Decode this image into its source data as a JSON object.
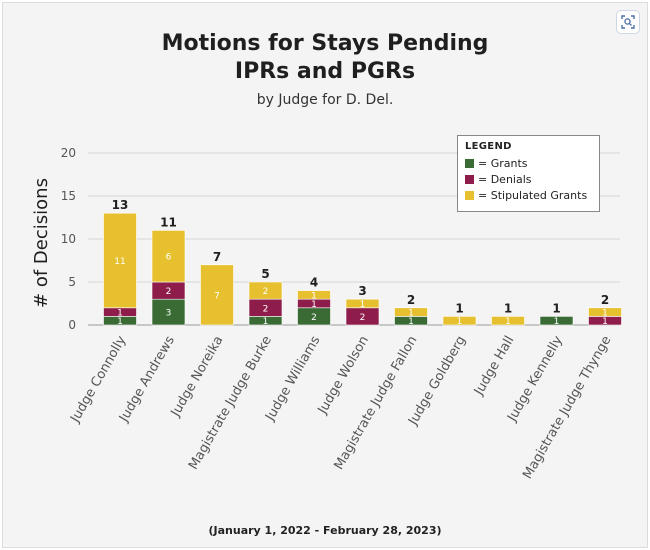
{
  "page": {
    "title_line1": "Motions for Stays Pending",
    "title_line2": "IPRs and PGRs",
    "subtitle": "by Judge for D. Del.",
    "footnote": "(January 1, 2022 - February 28, 2023)"
  },
  "legend": {
    "title": "LEGEND",
    "items": [
      "= Grants",
      "= Denials",
      "= Stipulated Grants"
    ]
  },
  "colors": {
    "grants": "#3a6b35",
    "denials": "#8e1d4b",
    "stipulated": "#e6c02f"
  },
  "chart_data": {
    "type": "bar",
    "stacked": true,
    "title": "Motions for Stays Pending IPRs and PGRs",
    "subtitle": "by Judge for D. Del.",
    "xlabel": "",
    "ylabel": "# of Decisions",
    "ylim": [
      0,
      20
    ],
    "yticks": [
      0,
      5,
      10,
      15,
      20
    ],
    "grid": true,
    "legend_position": "top-right",
    "categories": [
      "Judge Connolly",
      "Judge Andrews",
      "Judge Noreika",
      "Magistrate Judge Burke",
      "Judge Williams",
      "Judge Wolson",
      "Magistrate Judge Fallon",
      "Judge Goldberg",
      "Judge Hall",
      "Judge Kennelly",
      "Magistrate Judge Thynge"
    ],
    "series": [
      {
        "name": "Grants",
        "values": [
          1,
          3,
          0,
          1,
          2,
          0,
          1,
          0,
          0,
          1,
          0
        ]
      },
      {
        "name": "Denials",
        "values": [
          1,
          2,
          0,
          2,
          1,
          2,
          0,
          0,
          0,
          0,
          1
        ]
      },
      {
        "name": "Stipulated Grants",
        "values": [
          11,
          6,
          7,
          2,
          1,
          1,
          1,
          1,
          1,
          0,
          1
        ]
      }
    ],
    "totals": [
      13,
      11,
      7,
      5,
      4,
      3,
      2,
      1,
      1,
      1,
      2
    ]
  }
}
